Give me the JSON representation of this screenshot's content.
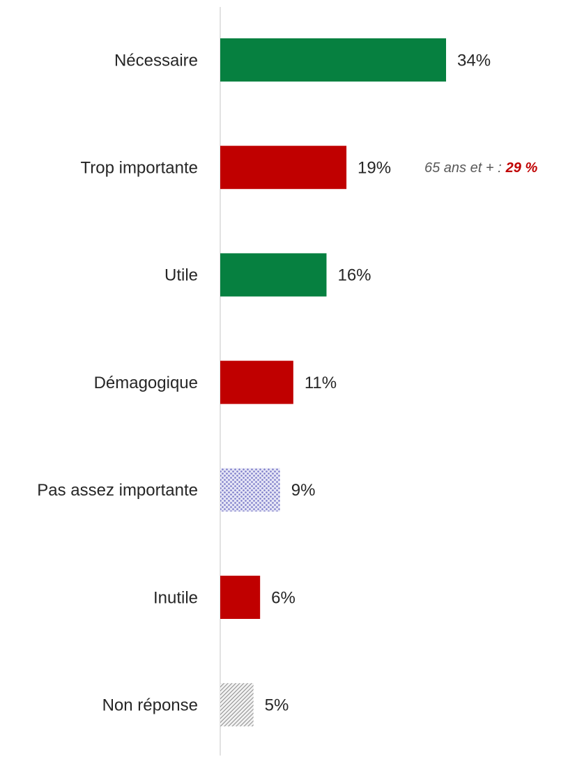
{
  "chart_data": {
    "type": "bar",
    "orientation": "horizontal",
    "categories": [
      "Nécessaire",
      "Trop importante",
      "Utile",
      "Démagogique",
      "Pas assez importante",
      "Inutile",
      "Non réponse"
    ],
    "values": [
      34,
      19,
      16,
      11,
      9,
      6,
      5
    ],
    "value_labels": [
      "34%",
      "19%",
      "16%",
      "11%",
      "9%",
      "6%",
      "5%"
    ],
    "colors": [
      "#068040",
      "#c00000",
      "#068040",
      "#c00000",
      "#7b7bc8",
      "#c00000",
      "#8c8c8c"
    ],
    "fills": [
      "solid",
      "solid",
      "solid",
      "solid",
      "dots",
      "solid",
      "hatch"
    ],
    "annotation": {
      "label": "65 ans et + :",
      "value": 29,
      "value_label": "29 %",
      "color": "#c00000"
    }
  }
}
